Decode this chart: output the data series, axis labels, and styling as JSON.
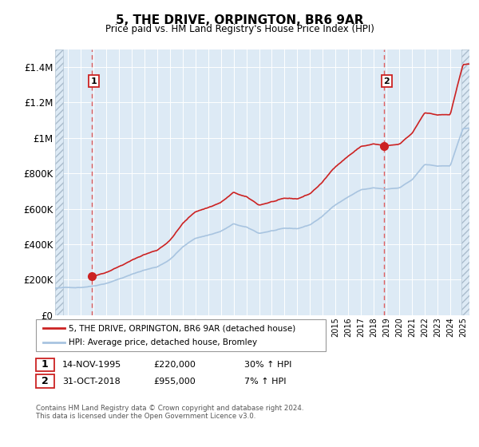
{
  "title": "5, THE DRIVE, ORPINGTON, BR6 9AR",
  "subtitle": "Price paid vs. HM Land Registry's House Price Index (HPI)",
  "hpi_label": "HPI: Average price, detached house, Bromley",
  "property_label": "5, THE DRIVE, ORPINGTON, BR6 9AR (detached house)",
  "footnote": "Contains HM Land Registry data © Crown copyright and database right 2024.\nThis data is licensed under the Open Government Licence v3.0.",
  "sale1_date": "14-NOV-1995",
  "sale1_price": 220000,
  "sale1_hpi_text": "30% ↑ HPI",
  "sale2_date": "31-OCT-2018",
  "sale2_price": 955000,
  "sale2_hpi_text": "7% ↑ HPI",
  "ylim_min": 0,
  "ylim_max": 1500000,
  "yticks": [
    0,
    200000,
    400000,
    600000,
    800000,
    1000000,
    1200000,
    1400000
  ],
  "ytick_labels": [
    "£0",
    "£200K",
    "£400K",
    "£600K",
    "£800K",
    "£1M",
    "£1.2M",
    "£1.4M"
  ],
  "sale1_x": 1995.87,
  "sale2_x": 2018.83,
  "hpi_color": "#a8c4e0",
  "property_color": "#cc2222",
  "sale1_marker_y": 220000,
  "sale2_marker_y": 955000,
  "background_color": "#ddeaf5",
  "grid_color": "#ffffff",
  "vline_color": "#dd4444",
  "xlim_min": 1993.0,
  "xlim_max": 2025.5
}
